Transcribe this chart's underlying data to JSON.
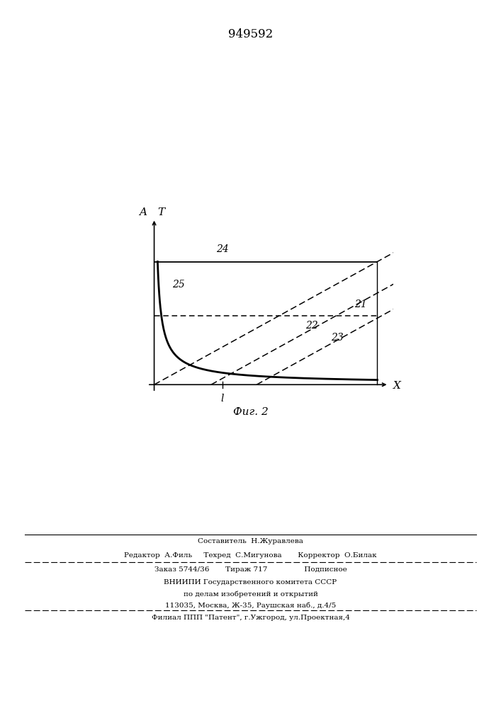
{
  "title": "949592",
  "fig_label_ru": "Фиг. 2",
  "axis_x_label": "X",
  "axis_y_label": "T",
  "axis_y_label2": "A",
  "x_tick_label": "l",
  "label_24": "24",
  "label_25": "25",
  "label_22": "22",
  "label_23": "23",
  "label_21": "21",
  "footer_line1": "Составитель  Н.Журавлева",
  "footer_line2": "Редактор  А.Филь     Техред  С.Мигунова       Корректор  О.Билак",
  "footer_line3": "Заказ 5744/36       Тираж 717                Подписное",
  "footer_line4": "ВНИИПИ Государственного комитета СССР",
  "footer_line5": "по делам изобретений и открытий",
  "footer_line6": "113035, Москва, Ж-35, Раушская наб., д.4/5",
  "footer_line7": "Филиал ППП \"Патент\", г.Ужгород, ул.Проектная,4"
}
